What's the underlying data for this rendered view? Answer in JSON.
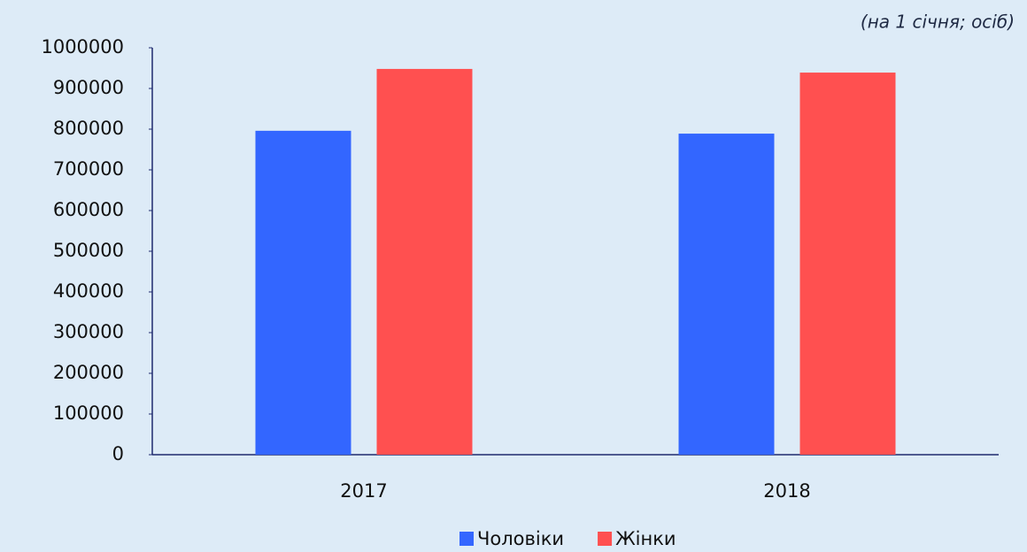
{
  "chart_data": {
    "type": "bar",
    "subtitle": "(на 1 січня; осіб)",
    "categories": [
      "2017",
      "2018"
    ],
    "series": [
      {
        "name": "Чоловіки",
        "color": "#3366ff",
        "values": [
          796000,
          789000
        ]
      },
      {
        "name": "Жінки",
        "color": "#ff5050",
        "values": [
          948000,
          939000
        ]
      }
    ],
    "ylim": [
      0,
      1000000
    ],
    "yticks": [
      0,
      100000,
      200000,
      300000,
      400000,
      500000,
      600000,
      700000,
      800000,
      900000,
      1000000
    ]
  }
}
